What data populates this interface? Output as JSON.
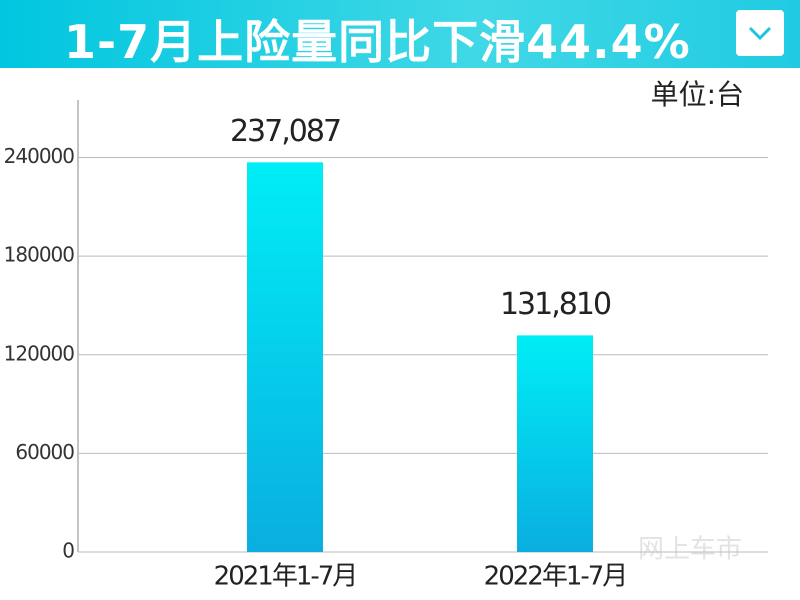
{
  "chart_data": {
    "type": "bar",
    "title": "1-7月上险量同比下滑44.4%",
    "unit": "单位:台",
    "watermark": "网上车市",
    "categories": [
      "2021年1-7月",
      "2022年1-7月"
    ],
    "values": [
      237087,
      131810
    ],
    "value_labels": [
      "237,087",
      "131,810"
    ],
    "gradient": [
      "#00eef6",
      "#0aaee0"
    ],
    "ylim": [
      0,
      275000
    ],
    "yticks": [
      0,
      60000,
      120000,
      180000,
      240000
    ],
    "grid": true
  }
}
